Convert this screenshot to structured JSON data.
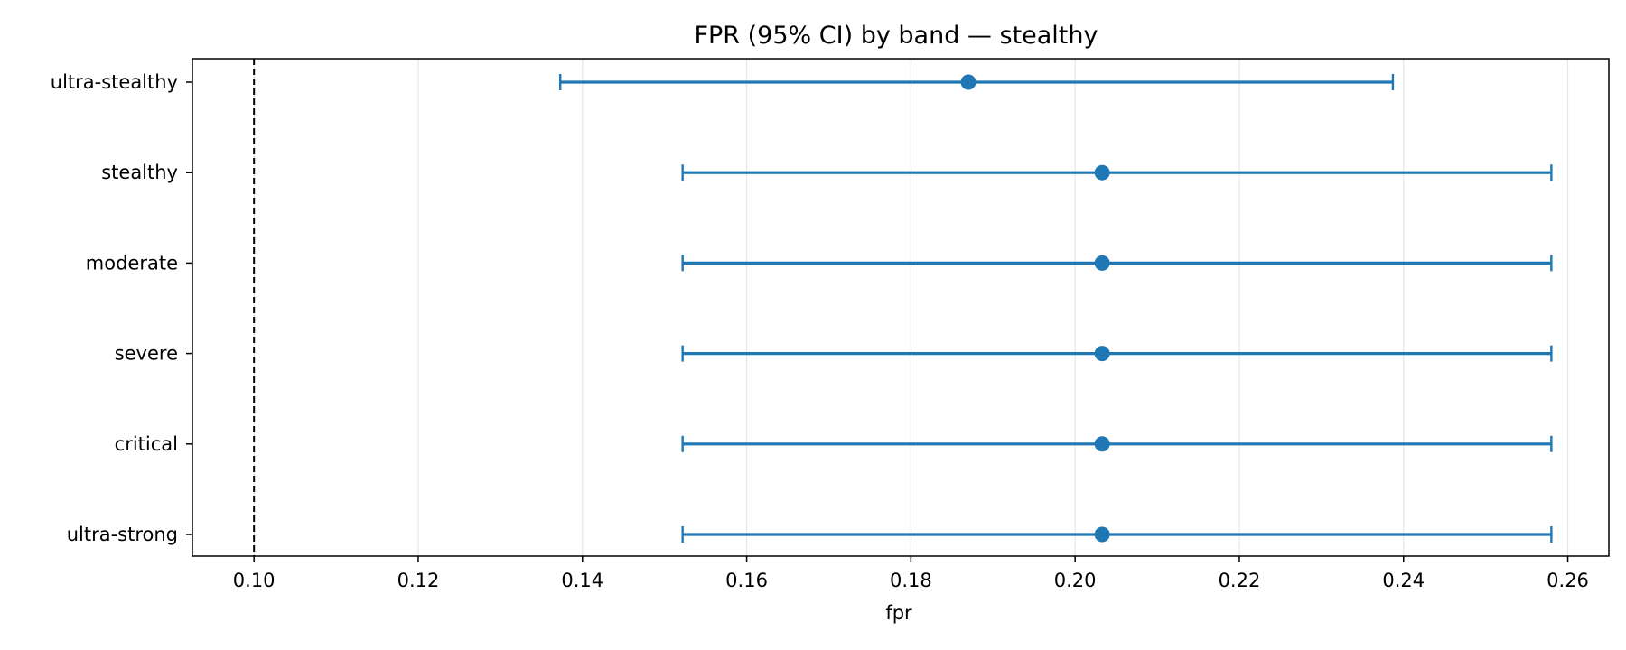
{
  "chart_data": {
    "type": "errorbar",
    "title": "FPR (95% CI) by band — stealthy",
    "xlabel": "fpr",
    "ylabel": "",
    "xlim": [
      0.0925,
      0.265
    ],
    "xticks": [
      0.1,
      0.12,
      0.14,
      0.16,
      0.18,
      0.2,
      0.22,
      0.24,
      0.26
    ],
    "xtick_labels": [
      "0.10",
      "0.12",
      "0.14",
      "0.16",
      "0.18",
      "0.20",
      "0.22",
      "0.24",
      "0.26"
    ],
    "grid": "vertical",
    "reference_line": {
      "x": 0.1,
      "style": "dashed",
      "color": "#000000"
    },
    "color": "#1f77b4",
    "categories": [
      "ultra-stealthy",
      "stealthy",
      "moderate",
      "severe",
      "critical",
      "ultra-strong"
    ],
    "points": [
      {
        "label": "ultra-stealthy",
        "value": 0.187,
        "lower": 0.1373,
        "upper": 0.2387
      },
      {
        "label": "stealthy",
        "value": 0.2033,
        "lower": 0.1522,
        "upper": 0.258
      },
      {
        "label": "moderate",
        "value": 0.2033,
        "lower": 0.1522,
        "upper": 0.258
      },
      {
        "label": "severe",
        "value": 0.2033,
        "lower": 0.1522,
        "upper": 0.258
      },
      {
        "label": "critical",
        "value": 0.2033,
        "lower": 0.1522,
        "upper": 0.258
      },
      {
        "label": "ultra-strong",
        "value": 0.2033,
        "lower": 0.1522,
        "upper": 0.258
      }
    ]
  }
}
